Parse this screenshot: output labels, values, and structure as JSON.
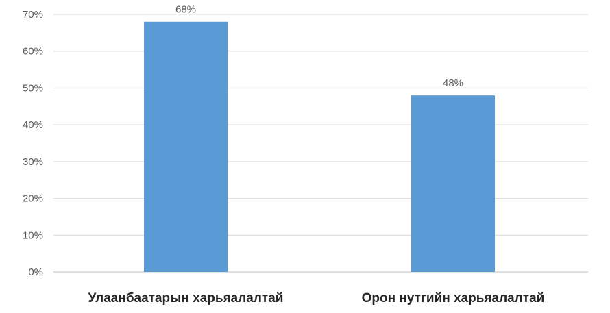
{
  "chart_data": {
    "type": "bar",
    "categories": [
      "Улаанбаатарын харьяалалтай",
      "Орон нутгийн харьяалалтай"
    ],
    "values": [
      68,
      48
    ],
    "data_labels": [
      "68%",
      "48%"
    ],
    "ylim": [
      0,
      70
    ],
    "y_ticks": [
      "0%",
      "10%",
      "20%",
      "30%",
      "40%",
      "50%",
      "60%",
      "70%"
    ],
    "grid": true,
    "bar_color": "#5B9BD5",
    "grid_color": "#D9D9D9",
    "title": "",
    "xlabel": "",
    "ylabel": ""
  }
}
